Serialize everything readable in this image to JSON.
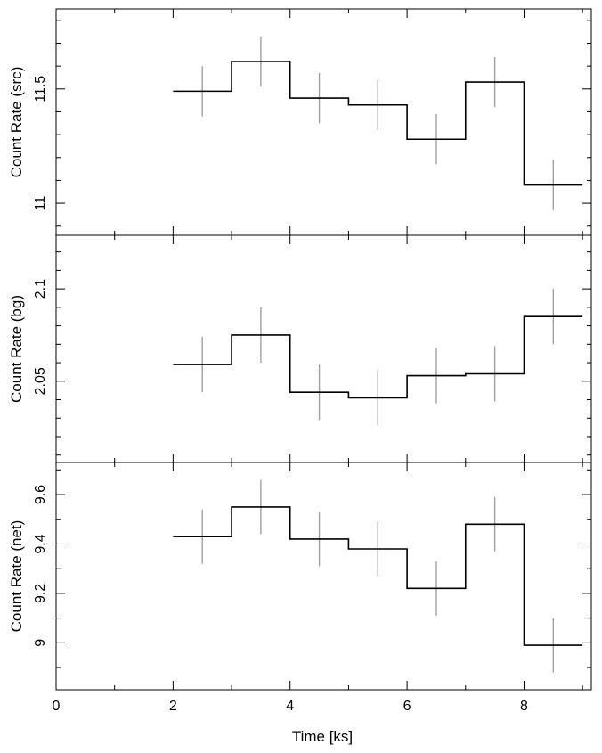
{
  "chart_data": {
    "type": "line",
    "style": "step light curve, three stacked panels sharing the time axis",
    "xlabel": "Time [ks]",
    "xlim": [
      0,
      9.15
    ],
    "x_ticks": [
      0,
      2,
      4,
      6,
      8
    ],
    "x_tick_labels": [
      "0",
      "2",
      "4",
      "6",
      "8"
    ],
    "x_minor_step": 1,
    "grid": false,
    "legend": "none",
    "colors": {
      "step_line": "#000000",
      "error_bars": "#a0a0a0",
      "frame": "#000000"
    },
    "panels": [
      {
        "ylabel": "Count Rate (src)",
        "ylim": [
          10.86,
          11.85
        ],
        "y_ticks": [
          11,
          11.5
        ],
        "y_tick_labels": [
          "11",
          "11.5"
        ],
        "y_minor_step": 0.1,
        "bin_edges": [
          2,
          3,
          4,
          5,
          6,
          7,
          8,
          9
        ],
        "x": [
          2.5,
          3.5,
          4.5,
          5.5,
          6.5,
          7.5,
          8.5
        ],
        "values": [
          11.49,
          11.62,
          11.46,
          11.43,
          11.28,
          11.53,
          11.08
        ],
        "errors": [
          0.11,
          0.11,
          0.11,
          0.11,
          0.11,
          0.11,
          0.11
        ]
      },
      {
        "ylabel": "Count Rate (bg)",
        "ylim": [
          2.006,
          2.129
        ],
        "y_ticks": [
          2.05,
          2.1
        ],
        "y_tick_labels": [
          "2.05",
          "2.1"
        ],
        "y_minor_step": 0.01,
        "bin_edges": [
          2,
          3,
          4,
          5,
          6,
          7,
          8,
          9
        ],
        "x": [
          2.5,
          3.5,
          4.5,
          5.5,
          6.5,
          7.5,
          8.5
        ],
        "values": [
          2.059,
          2.075,
          2.044,
          2.041,
          2.053,
          2.054,
          2.085
        ],
        "errors": [
          0.015,
          0.015,
          0.015,
          0.015,
          0.015,
          0.015,
          0.015
        ]
      },
      {
        "ylabel": "Count Rate (net)",
        "ylim": [
          8.81,
          9.73
        ],
        "y_ticks": [
          9,
          9.2,
          9.4,
          9.6
        ],
        "y_tick_labels": [
          "9",
          "9.2",
          "9.4",
          "9.6"
        ],
        "y_minor_step": 0.1,
        "bin_edges": [
          2,
          3,
          4,
          5,
          6,
          7,
          8,
          9
        ],
        "x": [
          2.5,
          3.5,
          4.5,
          5.5,
          6.5,
          7.5,
          8.5
        ],
        "values": [
          9.43,
          9.55,
          9.42,
          9.38,
          9.22,
          9.48,
          8.99
        ],
        "errors": [
          0.11,
          0.11,
          0.11,
          0.11,
          0.11,
          0.11,
          0.11
        ]
      }
    ]
  }
}
